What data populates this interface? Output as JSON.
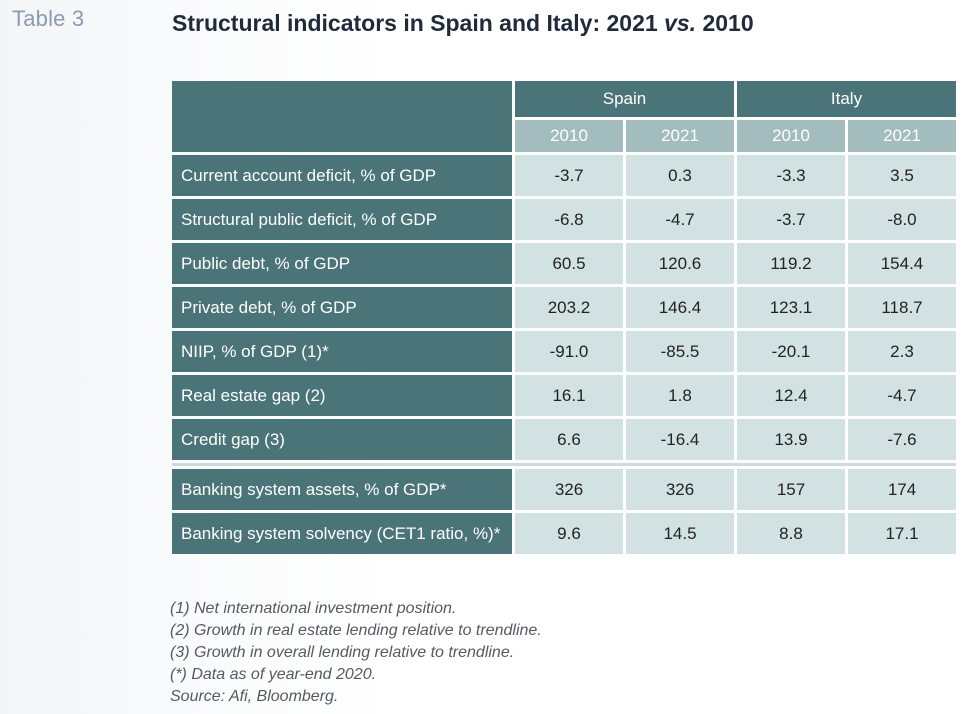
{
  "header": {
    "table_label": "Table 3",
    "title_main": "Structural indicators in Spain and Italy: 2021 ",
    "title_vs": "vs.",
    "title_end": " 2010"
  },
  "table": {
    "countries": [
      "Spain",
      "Italy"
    ],
    "years": [
      "2010",
      "2021",
      "2010",
      "2021"
    ],
    "rows": [
      {
        "label": "Current account deficit, % of GDP",
        "values": [
          "-3.7",
          "0.3",
          "-3.3",
          "3.5"
        ]
      },
      {
        "label": "Structural public deficit, % of GDP",
        "values": [
          "-6.8",
          "-4.7",
          "-3.7",
          "-8.0"
        ]
      },
      {
        "label": "Public debt, % of GDP",
        "values": [
          "60.5",
          "120.6",
          "119.2",
          "154.4"
        ]
      },
      {
        "label": "Private debt, % of GDP",
        "values": [
          "203.2",
          "146.4",
          "123.1",
          "118.7"
        ]
      },
      {
        "label": "NIIP, % of GDP (1)*",
        "values": [
          "-91.0",
          "-85.5",
          "-20.1",
          "2.3"
        ]
      },
      {
        "label": "Real estate gap (2)",
        "values": [
          "16.1",
          "1.8",
          "12.4",
          "-4.7"
        ]
      },
      {
        "label": "Credit gap (3)",
        "values": [
          "6.6",
          "-16.4",
          "13.9",
          "-7.6"
        ]
      },
      {
        "label": "Banking system assets, % of GDP*",
        "values": [
          "326",
          "326",
          "157",
          "174"
        ]
      },
      {
        "label": "Banking system solvency (CET1 ratio, %)*",
        "values": [
          "9.6",
          "14.5",
          "8.8",
          "17.1"
        ]
      }
    ]
  },
  "notes": [
    "(1) Net international investment position.",
    "(2) Growth in real estate lending relative to trendline.",
    "(3) Growth in overall lending relative to trendline.",
    "(*) Data as of year-end 2020.",
    "Source: Afi, Bloomberg."
  ],
  "colors": {
    "header_dark": "#4a7478",
    "header_light": "#a3bcbd",
    "cell_bg": "#d2e2e3"
  }
}
